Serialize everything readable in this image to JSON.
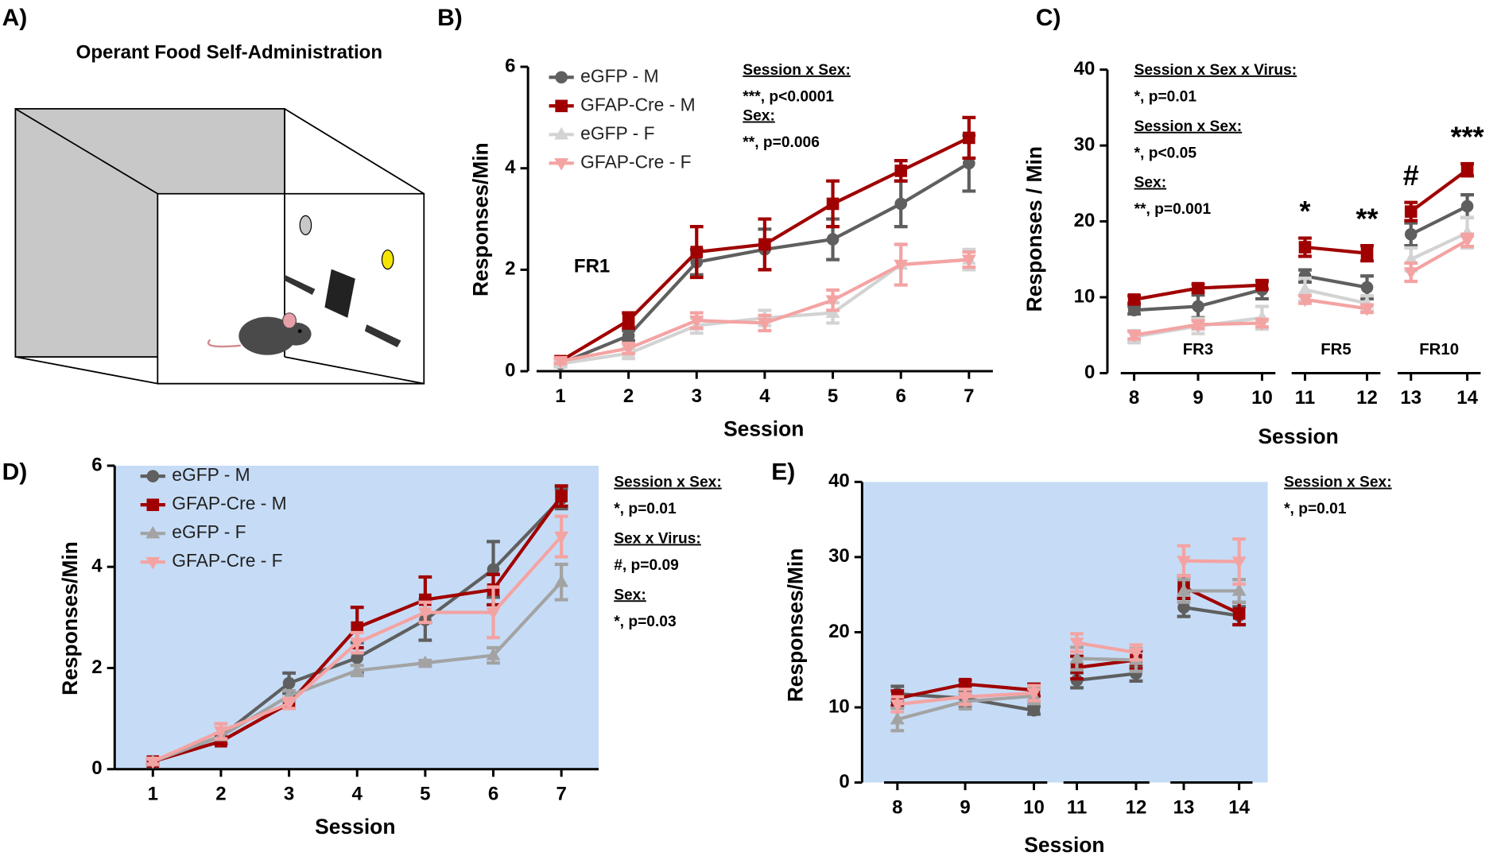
{
  "panel_a": {
    "label": "A)",
    "title": "Operant Food Self-Administration"
  },
  "chart_data": [
    {
      "type": "line",
      "panel": "B)",
      "xlabel": "Session",
      "ylabel": "Responses/Min",
      "x": [
        1,
        2,
        3,
        4,
        5,
        6,
        7
      ],
      "ylim": [
        0,
        6
      ],
      "yticks": [
        0,
        2,
        4,
        6
      ],
      "legend": "upper left",
      "annotations": [
        "FR1"
      ],
      "stats": [
        {
          "heading": "Session x Sex:",
          "result": "***, p<0.0001"
        },
        {
          "heading": "Sex:",
          "result": "**, p=0.006"
        }
      ],
      "series": [
        {
          "name": "eGFP - M",
          "color": "#5f5f5f",
          "marker": "circle",
          "values": [
            0.15,
            0.7,
            2.15,
            2.4,
            2.6,
            3.3,
            4.1
          ],
          "errors": [
            0.05,
            0.1,
            0.25,
            0.4,
            0.4,
            0.45,
            0.55
          ]
        },
        {
          "name": "GFAP-Cre - M",
          "color": "#a00000",
          "marker": "square",
          "values": [
            0.2,
            1.0,
            2.35,
            2.5,
            3.3,
            3.95,
            4.6
          ],
          "errors": [
            0.05,
            0.15,
            0.5,
            0.5,
            0.45,
            0.2,
            0.4
          ]
        },
        {
          "name": "eGFP - F",
          "color": "#d3d3d3",
          "marker": "triangle-up",
          "values": [
            0.15,
            0.35,
            0.9,
            1.05,
            1.15,
            2.1,
            2.2
          ],
          "errors": [
            0.05,
            0.1,
            0.15,
            0.15,
            0.2,
            0.4,
            0.2
          ]
        },
        {
          "name": "GFAP-Cre - F",
          "color": "#f4a3a3",
          "marker": "triangle-down",
          "values": [
            0.2,
            0.45,
            1.0,
            0.95,
            1.4,
            2.1,
            2.2
          ],
          "errors": [
            0.05,
            0.1,
            0.15,
            0.15,
            0.2,
            0.4,
            0.15
          ]
        }
      ]
    },
    {
      "type": "line",
      "panel": "C)",
      "xlabel": "Session",
      "ylabel": "Responses / Min",
      "x": [
        8,
        9,
        10,
        11,
        12,
        13,
        14
      ],
      "ylim": [
        0,
        40
      ],
      "yticks": [
        0,
        10,
        20,
        30,
        40
      ],
      "segments": [
        {
          "label": "FR3",
          "x": [
            8,
            10
          ]
        },
        {
          "label": "FR5",
          "x": [
            11,
            12
          ]
        },
        {
          "label": "FR10",
          "x": [
            13,
            14
          ]
        }
      ],
      "significance": [
        {
          "x": 11,
          "label": "*"
        },
        {
          "x": 12,
          "label": "**"
        },
        {
          "x": 13,
          "label": "#"
        },
        {
          "x": 14,
          "label": "***"
        }
      ],
      "stats": [
        {
          "heading": "Session x Sex x Virus:",
          "result": "*, p=0.01"
        },
        {
          "heading": "Session x Sex:",
          "result": "*, p<0.05"
        },
        {
          "heading": "Sex:",
          "result": "**, p=0.001"
        }
      ],
      "series": [
        {
          "name": "eGFP - M",
          "color": "#5f5f5f",
          "marker": "circle",
          "values": [
            8.3,
            8.8,
            11.0,
            12.8,
            11.3,
            18.3,
            22.0
          ],
          "errors": [
            0.5,
            1.5,
            1.2,
            0.8,
            1.5,
            1.5,
            1.5
          ]
        },
        {
          "name": "GFAP-Cre - M",
          "color": "#a00000",
          "marker": "square",
          "values": [
            9.7,
            11.2,
            11.6,
            16.6,
            15.8,
            21.3,
            26.8
          ],
          "errors": [
            0.5,
            0.5,
            0.5,
            1.2,
            1.0,
            1.2,
            0.8
          ]
        },
        {
          "name": "eGFP - F",
          "color": "#d3d3d3",
          "marker": "triangle-up",
          "values": [
            4.8,
            6.2,
            7.3,
            11.0,
            9.2,
            15.0,
            18.5
          ],
          "errors": [
            0.8,
            1.0,
            1.5,
            1.5,
            1.0,
            1.5,
            2.0
          ]
        },
        {
          "name": "GFAP-Cre - F",
          "color": "#f4a3a3",
          "marker": "triangle-down",
          "values": [
            5.0,
            6.4,
            6.6,
            9.7,
            8.5,
            13.3,
            17.5
          ],
          "errors": [
            0.5,
            0.5,
            0.5,
            0.5,
            0.5,
            1.2,
            0.8
          ]
        }
      ]
    },
    {
      "type": "line",
      "panel": "D)",
      "xlabel": "Session",
      "ylabel": "Responses/Min",
      "background": "#c6dcf6",
      "x": [
        1,
        2,
        3,
        4,
        5,
        6,
        7
      ],
      "ylim": [
        0,
        6
      ],
      "yticks": [
        0,
        2,
        4,
        6
      ],
      "legend": "upper left",
      "stats": [
        {
          "heading": "Session x Sex:",
          "result": "*, p=0.01"
        },
        {
          "heading": "Sex x Virus:",
          "result": "#, p=0.09"
        },
        {
          "heading": "Sex:",
          "result": "*, p=0.03"
        }
      ],
      "series": [
        {
          "name": "eGFP - M",
          "color": "#5f5f5f",
          "marker": "circle",
          "values": [
            0.15,
            0.65,
            1.7,
            2.2,
            2.95,
            3.95,
            5.35
          ],
          "errors": [
            0.05,
            0.05,
            0.2,
            0.3,
            0.4,
            0.55,
            0.2
          ]
        },
        {
          "name": "GFAP-Cre - M",
          "color": "#a00000",
          "marker": "square",
          "values": [
            0.15,
            0.55,
            1.3,
            2.8,
            3.35,
            3.55,
            5.4
          ],
          "errors": [
            0.05,
            0.05,
            0.1,
            0.4,
            0.45,
            0.3,
            0.2
          ]
        },
        {
          "name": "eGFP - F",
          "color": "#a3a3a3",
          "marker": "triangle-up",
          "values": [
            0.15,
            0.65,
            1.45,
            1.95,
            2.1,
            2.25,
            3.7
          ],
          "errors": [
            0.05,
            0.05,
            0.1,
            0.1,
            0.05,
            0.15,
            0.35
          ]
        },
        {
          "name": "GFAP-Cre - F",
          "color": "#f4a3a3",
          "marker": "triangle-down",
          "values": [
            0.15,
            0.75,
            1.3,
            2.5,
            3.1,
            3.1,
            4.6
          ],
          "errors": [
            0.05,
            0.15,
            0.1,
            0.2,
            0.2,
            0.5,
            0.4
          ]
        }
      ]
    },
    {
      "type": "line",
      "panel": "E)",
      "xlabel": "Session",
      "ylabel": "Responses/Min",
      "background": "#c6dcf6",
      "x": [
        8,
        9,
        10,
        11,
        12,
        13,
        14
      ],
      "ylim": [
        0,
        40
      ],
      "yticks": [
        0,
        10,
        20,
        30,
        40
      ],
      "segments": [
        {
          "x": [
            8,
            10
          ]
        },
        {
          "x": [
            11,
            12
          ]
        },
        {
          "x": [
            13,
            14
          ]
        }
      ],
      "stats": [
        {
          "heading": "Session x Sex:",
          "result": "*, p=0.01"
        }
      ],
      "series": [
        {
          "name": "eGFP - M",
          "color": "#5f5f5f",
          "marker": "circle",
          "values": [
            11.8,
            11.2,
            9.6,
            13.6,
            14.5,
            23.3,
            22.2
          ],
          "errors": [
            1.0,
            1.0,
            0.5,
            1.0,
            1.0,
            1.2,
            1.2
          ]
        },
        {
          "name": "GFAP-Cre - M",
          "color": "#a00000",
          "marker": "square",
          "values": [
            11.2,
            13.1,
            12.3,
            15.3,
            16.3,
            26.0,
            22.5
          ],
          "errors": [
            1.0,
            0.5,
            0.8,
            1.5,
            1.2,
            1.5,
            1.5
          ]
        },
        {
          "name": "eGFP - F",
          "color": "#a3a3a3",
          "marker": "triangle-up",
          "values": [
            8.4,
            10.8,
            11.5,
            16.5,
            16.3,
            25.5,
            25.5
          ],
          "errors": [
            1.5,
            1.0,
            1.0,
            1.5,
            1.5,
            1.5,
            1.5
          ]
        },
        {
          "name": "GFAP-Cre - F",
          "color": "#f4a3a3",
          "marker": "triangle-down",
          "values": [
            10.4,
            11.4,
            11.9,
            18.6,
            17.3,
            29.5,
            29.4
          ],
          "errors": [
            1.0,
            1.0,
            1.0,
            1.2,
            1.0,
            2.0,
            3.0
          ]
        }
      ]
    }
  ]
}
